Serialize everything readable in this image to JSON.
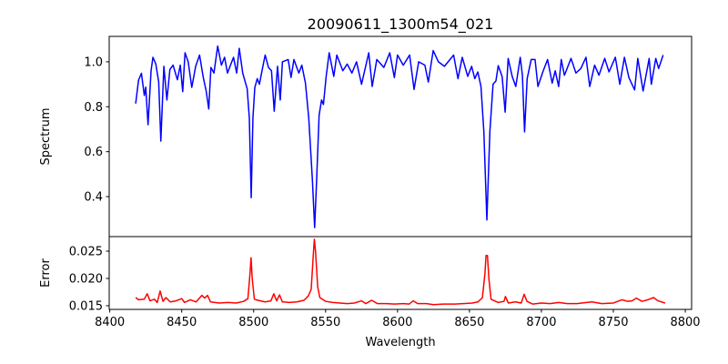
{
  "chart_data": [
    {
      "type": "line",
      "title": "20090611_1300m54_021",
      "xlabel": "",
      "ylabel": "Spectrum",
      "xlim": [
        8399.6,
        8804.4
      ],
      "ylim": [
        0.222,
        1.113
      ],
      "yticks": [
        0.4,
        0.6,
        0.8,
        1.0
      ],
      "ytick_labels": [
        "0.4",
        "0.6",
        "0.8",
        "1.0"
      ],
      "grid": false,
      "color": "#0000ff",
      "x": [
        8418,
        8420,
        8422,
        8424,
        8425,
        8426.6,
        8428.7,
        8430,
        8432,
        8434,
        8435.5,
        8437.6,
        8439.7,
        8441.8,
        8444,
        8447,
        8449,
        8450.7,
        8452.3,
        8454.5,
        8457,
        8459.7,
        8462.4,
        8465,
        8467,
        8468.8,
        8470.3,
        8472.4,
        8475,
        8477.6,
        8479.8,
        8481.8,
        8486,
        8488.2,
        8490,
        8492.4,
        8495.5,
        8497,
        8498.3,
        8499.5,
        8500.8,
        8502.5,
        8504,
        8506,
        8508,
        8510.3,
        8512.4,
        8514.3,
        8516.6,
        8518.5,
        8520,
        8524,
        8526,
        8528,
        8531.4,
        8533.5,
        8536,
        8538.3,
        8540.8,
        8542.4,
        8543.8,
        8545.5,
        8547.2,
        8548.5,
        8550.4,
        8552.5,
        8555.7,
        8557.8,
        8562,
        8565,
        8568.3,
        8571.5,
        8575,
        8580,
        8582.4,
        8585.6,
        8590.5,
        8594.6,
        8597.8,
        8600,
        8604,
        8608.4,
        8611.5,
        8614.7,
        8619,
        8621.4,
        8624.8,
        8628.4,
        8632.6,
        8639,
        8642,
        8645,
        8648.8,
        8651.5,
        8653.7,
        8655.8,
        8658,
        8660,
        8662.1,
        8664.2,
        8666.4,
        8668.4,
        8670,
        8672.7,
        8674.8,
        8676.9,
        8679.7,
        8682.2,
        8685.3,
        8686.8,
        8688.3,
        8690.1,
        8692.9,
        8695.6,
        8697.6,
        8701,
        8704.3,
        8707.5,
        8709.6,
        8712,
        8713.8,
        8716,
        8720.6,
        8724,
        8727.4,
        8731,
        8733.6,
        8737,
        8740,
        8744,
        8747,
        8751.4,
        8754.5,
        8757.7,
        8760.8,
        8764.8,
        8767,
        8770.7,
        8774.9,
        8776.4,
        8779.5,
        8781.5,
        8784.6
      ],
      "y": [
        0.814,
        0.918,
        0.949,
        0.85,
        0.887,
        0.72,
        0.96,
        1.02,
        0.99,
        0.91,
        0.647,
        0.98,
        0.83,
        0.966,
        0.985,
        0.92,
        0.985,
        0.867,
        1.04,
        1.0,
        0.886,
        0.98,
        1.03,
        0.93,
        0.87,
        0.79,
        0.975,
        0.95,
        1.07,
        0.985,
        1.02,
        0.95,
        1.02,
        0.95,
        1.06,
        0.95,
        0.88,
        0.75,
        0.395,
        0.75,
        0.885,
        0.925,
        0.9,
        0.966,
        1.03,
        0.975,
        0.96,
        0.78,
        0.98,
        0.83,
        1.0,
        1.01,
        0.93,
        1.01,
        0.95,
        0.985,
        0.905,
        0.75,
        0.478,
        0.262,
        0.478,
        0.762,
        0.83,
        0.81,
        0.935,
        1.04,
        0.935,
        1.03,
        0.96,
        0.99,
        0.95,
        1.0,
        0.9,
        1.04,
        0.89,
        1.01,
        0.975,
        1.04,
        0.93,
        1.03,
        0.985,
        1.03,
        0.877,
        1.0,
        0.985,
        0.91,
        1.05,
        1.0,
        0.98,
        1.03,
        0.925,
        1.02,
        0.935,
        0.98,
        0.925,
        0.955,
        0.89,
        0.69,
        0.296,
        0.69,
        0.9,
        0.915,
        0.983,
        0.935,
        0.776,
        1.015,
        0.935,
        0.89,
        1.02,
        0.94,
        0.688,
        0.925,
        1.01,
        1.01,
        0.89,
        0.955,
        1.01,
        0.905,
        0.96,
        0.89,
        1.01,
        0.94,
        1.015,
        0.95,
        0.97,
        1.02,
        0.89,
        0.985,
        0.94,
        1.015,
        0.955,
        1.02,
        0.9,
        1.02,
        0.93,
        0.875,
        1.015,
        0.87,
        1.015,
        0.9,
        1.015,
        0.97,
        1.03
      ]
    },
    {
      "type": "line",
      "title": "",
      "xlabel": "Wavelength",
      "ylabel": "Error",
      "xlim": [
        8399.6,
        8804.4
      ],
      "ylim": [
        0.01433,
        0.02767
      ],
      "xticks": [
        8400,
        8450,
        8500,
        8550,
        8600,
        8650,
        8700,
        8750,
        8800
      ],
      "xtick_labels": [
        "8400",
        "8450",
        "8500",
        "8550",
        "8600",
        "8650",
        "8700",
        "8750",
        "8800"
      ],
      "yticks": [
        0.015,
        0.02,
        0.025
      ],
      "ytick_labels": [
        "0.015",
        "0.020",
        "0.025"
      ],
      "grid": false,
      "color": "#ff0000",
      "x": [
        8418,
        8420,
        8424,
        8426,
        8428,
        8431,
        8433,
        8435,
        8437,
        8439,
        8442,
        8446,
        8450,
        8452,
        8456,
        8460,
        8464,
        8466,
        8468,
        8470,
        8476,
        8482,
        8488,
        8493,
        8496,
        8497.5,
        8498.2,
        8499,
        8500.5,
        8503,
        8508,
        8512,
        8514,
        8516,
        8518,
        8520,
        8525,
        8530,
        8535,
        8538,
        8540,
        8541.5,
        8542.2,
        8543,
        8544.5,
        8546,
        8550,
        8555,
        8560,
        8565,
        8570,
        8575,
        8578,
        8582,
        8586,
        8592,
        8598,
        8604,
        8608,
        8611,
        8614,
        8620,
        8625,
        8632,
        8640,
        8646,
        8652,
        8656,
        8659,
        8660.8,
        8661.5,
        8662.5,
        8663.5,
        8665,
        8670,
        8674,
        8675,
        8677,
        8682,
        8686,
        8688,
        8690,
        8694,
        8700,
        8706,
        8712,
        8718,
        8725,
        8735,
        8742,
        8750,
        8756,
        8760,
        8763,
        8766,
        8770,
        8774,
        8778,
        8781,
        8786
      ],
      "y": [
        0.0165,
        0.0161,
        0.0162,
        0.0172,
        0.0159,
        0.0162,
        0.0156,
        0.0177,
        0.0158,
        0.0165,
        0.0157,
        0.0159,
        0.0163,
        0.0156,
        0.0161,
        0.0157,
        0.0169,
        0.0164,
        0.0169,
        0.0157,
        0.0155,
        0.0156,
        0.0155,
        0.0158,
        0.0163,
        0.021,
        0.0238,
        0.02,
        0.0162,
        0.016,
        0.0157,
        0.0159,
        0.0172,
        0.0159,
        0.017,
        0.0157,
        0.0156,
        0.0157,
        0.016,
        0.0168,
        0.018,
        0.0245,
        0.0272,
        0.025,
        0.0185,
        0.0165,
        0.0158,
        0.0156,
        0.0155,
        0.0154,
        0.0155,
        0.0159,
        0.0154,
        0.016,
        0.0154,
        0.0154,
        0.0153,
        0.0154,
        0.0153,
        0.0159,
        0.0154,
        0.0154,
        0.0152,
        0.0153,
        0.0153,
        0.0154,
        0.0155,
        0.0157,
        0.0165,
        0.021,
        0.0242,
        0.0242,
        0.02,
        0.0162,
        0.0156,
        0.0158,
        0.0167,
        0.0155,
        0.0157,
        0.0155,
        0.0171,
        0.0158,
        0.0153,
        0.0155,
        0.0154,
        0.0156,
        0.0154,
        0.0154,
        0.0157,
        0.0154,
        0.0155,
        0.0161,
        0.0158,
        0.0159,
        0.0164,
        0.0158,
        0.0161,
        0.0165,
        0.0159,
        0.0155
      ]
    }
  ]
}
